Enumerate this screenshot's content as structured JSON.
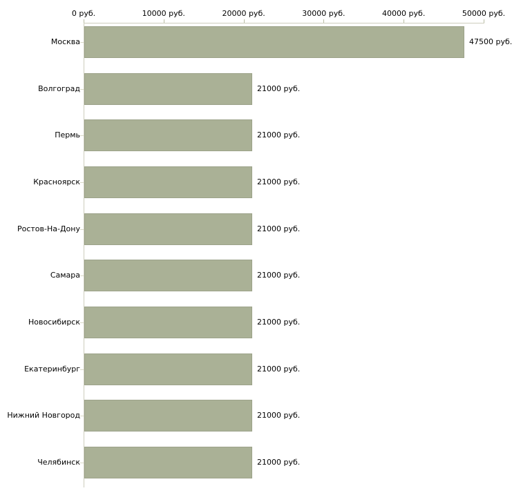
{
  "chart_data": {
    "type": "bar",
    "orientation": "horizontal",
    "title": "",
    "xlabel": "",
    "ylabel": "",
    "unit": "руб.",
    "categories": [
      "Москва",
      "Волгоград",
      "Пермь",
      "Красноярск",
      "Ростов-На-Дону",
      "Самара",
      "Новосибирск",
      "Екатеринбург",
      "Нижний Новгород",
      "Челябинск"
    ],
    "values": [
      47500,
      21000,
      21000,
      21000,
      21000,
      21000,
      21000,
      21000,
      21000,
      21000
    ],
    "value_labels": [
      "47500 руб.",
      "21000 руб.",
      "21000 руб.",
      "21000 руб.",
      "21000 руб.",
      "21000 руб.",
      "21000 руб.",
      "21000 руб.",
      "21000 руб.",
      "21000 руб."
    ],
    "x_tick_values": [
      0,
      10000,
      20000,
      30000,
      40000,
      50000
    ],
    "x_tick_labels": [
      "0 руб.",
      "10000 руб.",
      "20000 руб.",
      "30000 руб.",
      "40000 руб.",
      "50000 руб."
    ],
    "xlim": [
      0,
      50000
    ],
    "grid": false,
    "legend": "none",
    "colors": {
      "bar_fill": "#aab196",
      "bar_border": "#9ca289",
      "axis_line": "#ccccbc",
      "x_tick": "#b9bca4",
      "row_tick": "#d8d8c4",
      "text": "#000000",
      "background": "#ffffff"
    }
  }
}
